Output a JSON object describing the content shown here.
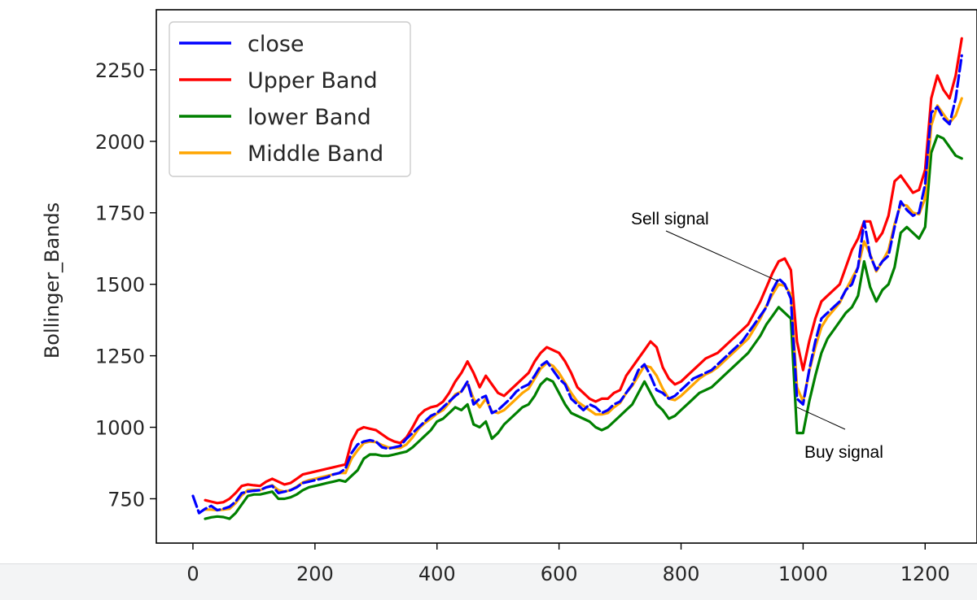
{
  "chart_data": {
    "type": "line",
    "title": "",
    "xlabel": "",
    "ylabel": "Bollinger_Bands",
    "xlim": [
      -60,
      1285
    ],
    "ylim": [
      595,
      2460
    ],
    "xticks": [
      0,
      200,
      400,
      600,
      800,
      1000,
      1200
    ],
    "yticks": [
      750,
      1000,
      1250,
      1500,
      1750,
      2000,
      2250
    ],
    "grid": false,
    "legend_position": "top-left",
    "x": [
      0,
      10,
      20,
      30,
      40,
      50,
      60,
      70,
      80,
      90,
      100,
      110,
      120,
      130,
      140,
      150,
      160,
      170,
      180,
      190,
      200,
      210,
      220,
      230,
      240,
      250,
      260,
      270,
      280,
      290,
      300,
      310,
      320,
      330,
      340,
      350,
      360,
      370,
      380,
      390,
      400,
      410,
      420,
      430,
      440,
      450,
      460,
      470,
      480,
      490,
      500,
      510,
      520,
      530,
      540,
      550,
      560,
      570,
      580,
      590,
      600,
      610,
      620,
      630,
      640,
      650,
      660,
      670,
      680,
      690,
      700,
      710,
      720,
      730,
      740,
      750,
      760,
      770,
      780,
      790,
      800,
      810,
      820,
      830,
      840,
      850,
      860,
      870,
      880,
      890,
      900,
      910,
      920,
      930,
      940,
      950,
      960,
      970,
      980,
      990,
      1000,
      1010,
      1020,
      1030,
      1040,
      1050,
      1060,
      1070,
      1080,
      1090,
      1100,
      1110,
      1120,
      1130,
      1140,
      1150,
      1160,
      1170,
      1180,
      1190,
      1200,
      1210,
      1220,
      1230,
      1240,
      1250,
      1260
    ],
    "series": [
      {
        "name": "close",
        "color": "#0000ff",
        "dashed": true,
        "values": [
          760,
          700,
          715,
          725,
          710,
          715,
          722,
          740,
          770,
          775,
          778,
          780,
          790,
          795,
          770,
          775,
          780,
          790,
          805,
          810,
          815,
          820,
          825,
          835,
          840,
          855,
          910,
          940,
          950,
          955,
          950,
          930,
          925,
          930,
          935,
          960,
          980,
          1000,
          1020,
          1040,
          1050,
          1070,
          1090,
          1110,
          1125,
          1160,
          1080,
          1100,
          1110,
          1050,
          1060,
          1080,
          1100,
          1125,
          1140,
          1150,
          1180,
          1215,
          1230,
          1200,
          1170,
          1150,
          1100,
          1080,
          1060,
          1080,
          1070,
          1050,
          1060,
          1080,
          1090,
          1120,
          1150,
          1200,
          1220,
          1180,
          1130,
          1120,
          1100,
          1110,
          1130,
          1150,
          1170,
          1180,
          1190,
          1200,
          1220,
          1240,
          1260,
          1280,
          1300,
          1330,
          1360,
          1390,
          1420,
          1480,
          1520,
          1500,
          1450,
          1100,
          1080,
          1200,
          1300,
          1380,
          1400,
          1420,
          1440,
          1480,
          1500,
          1560,
          1720,
          1600,
          1550,
          1580,
          1600,
          1700,
          1790,
          1760,
          1740,
          1750,
          1850,
          2100,
          2120,
          2080,
          2060,
          2150,
          2300
        ]
      },
      {
        "name": "Upper Band",
        "color": "#ff0000",
        "dashed": false,
        "values": [
          null,
          null,
          745,
          740,
          735,
          738,
          750,
          770,
          795,
          800,
          797,
          795,
          810,
          820,
          810,
          800,
          805,
          820,
          835,
          840,
          845,
          850,
          855,
          860,
          865,
          870,
          950,
          990,
          1000,
          995,
          990,
          975,
          960,
          950,
          945,
          965,
          1000,
          1040,
          1060,
          1070,
          1075,
          1090,
          1120,
          1160,
          1190,
          1230,
          1190,
          1140,
          1180,
          1150,
          1120,
          1110,
          1130,
          1150,
          1170,
          1190,
          1230,
          1260,
          1280,
          1270,
          1260,
          1230,
          1190,
          1140,
          1120,
          1100,
          1090,
          1100,
          1100,
          1120,
          1130,
          1180,
          1210,
          1240,
          1270,
          1300,
          1280,
          1210,
          1170,
          1150,
          1160,
          1180,
          1200,
          1220,
          1240,
          1250,
          1260,
          1280,
          1300,
          1320,
          1340,
          1360,
          1400,
          1440,
          1490,
          1540,
          1580,
          1590,
          1550,
          1300,
          1200,
          1300,
          1380,
          1440,
          1460,
          1480,
          1500,
          1560,
          1620,
          1660,
          1720,
          1720,
          1650,
          1680,
          1740,
          1860,
          1880,
          1850,
          1820,
          1830,
          1900,
          2150,
          2230,
          2180,
          2150,
          2230,
          2360
        ]
      },
      {
        "name": "lower Band",
        "color": "#008000",
        "dashed": false,
        "values": [
          null,
          null,
          680,
          685,
          688,
          686,
          680,
          700,
          730,
          760,
          765,
          765,
          770,
          775,
          750,
          750,
          755,
          765,
          780,
          790,
          795,
          800,
          805,
          810,
          815,
          810,
          830,
          850,
          890,
          905,
          905,
          900,
          900,
          905,
          910,
          915,
          930,
          950,
          970,
          990,
          1020,
          1030,
          1050,
          1070,
          1060,
          1080,
          1010,
          1000,
          1020,
          960,
          980,
          1010,
          1030,
          1050,
          1070,
          1080,
          1110,
          1150,
          1170,
          1160,
          1120,
          1080,
          1050,
          1040,
          1030,
          1020,
          1000,
          990,
          1000,
          1020,
          1040,
          1060,
          1080,
          1120,
          1160,
          1120,
          1080,
          1060,
          1030,
          1040,
          1060,
          1080,
          1100,
          1120,
          1130,
          1140,
          1160,
          1180,
          1200,
          1220,
          1240,
          1260,
          1290,
          1320,
          1360,
          1390,
          1420,
          1400,
          1380,
          980,
          980,
          1090,
          1180,
          1260,
          1310,
          1340,
          1370,
          1400,
          1420,
          1460,
          1580,
          1490,
          1440,
          1480,
          1500,
          1560,
          1680,
          1700,
          1680,
          1660,
          1700,
          1960,
          2020,
          2010,
          1980,
          1950,
          1940
        ]
      },
      {
        "name": "Middle Band",
        "color": "#ffa500",
        "dashed": false,
        "values": [
          null,
          null,
          712,
          712,
          710,
          712,
          715,
          735,
          762,
          780,
          781,
          780,
          790,
          797,
          780,
          775,
          780,
          792,
          807,
          815,
          820,
          825,
          830,
          835,
          840,
          840,
          890,
          920,
          945,
          950,
          948,
          938,
          930,
          928,
          928,
          940,
          965,
          995,
          1015,
          1030,
          1048,
          1060,
          1085,
          1115,
          1125,
          1155,
          1100,
          1070,
          1100,
          1055,
          1050,
          1060,
          1080,
          1100,
          1120,
          1135,
          1170,
          1205,
          1225,
          1215,
          1190,
          1155,
          1120,
          1090,
          1075,
          1060,
          1045,
          1045,
          1050,
          1070,
          1085,
          1120,
          1145,
          1180,
          1215,
          1210,
          1180,
          1135,
          1100,
          1095,
          1110,
          1130,
          1150,
          1170,
          1185,
          1195,
          1210,
          1230,
          1250,
          1270,
          1290,
          1310,
          1345,
          1380,
          1425,
          1465,
          1500,
          1495,
          1465,
          1140,
          1090,
          1195,
          1280,
          1350,
          1385,
          1410,
          1435,
          1480,
          1520,
          1560,
          1650,
          1605,
          1545,
          1580,
          1620,
          1710,
          1780,
          1775,
          1750,
          1745,
          1800,
          2055,
          2125,
          2095,
          2065,
          2090,
          2150
        ]
      }
    ],
    "annotations": [
      {
        "text": "Sell signal",
        "point": [
          960,
          1510
        ]
      },
      {
        "text": "Buy signal",
        "point": [
          990,
          1070
        ]
      }
    ]
  }
}
